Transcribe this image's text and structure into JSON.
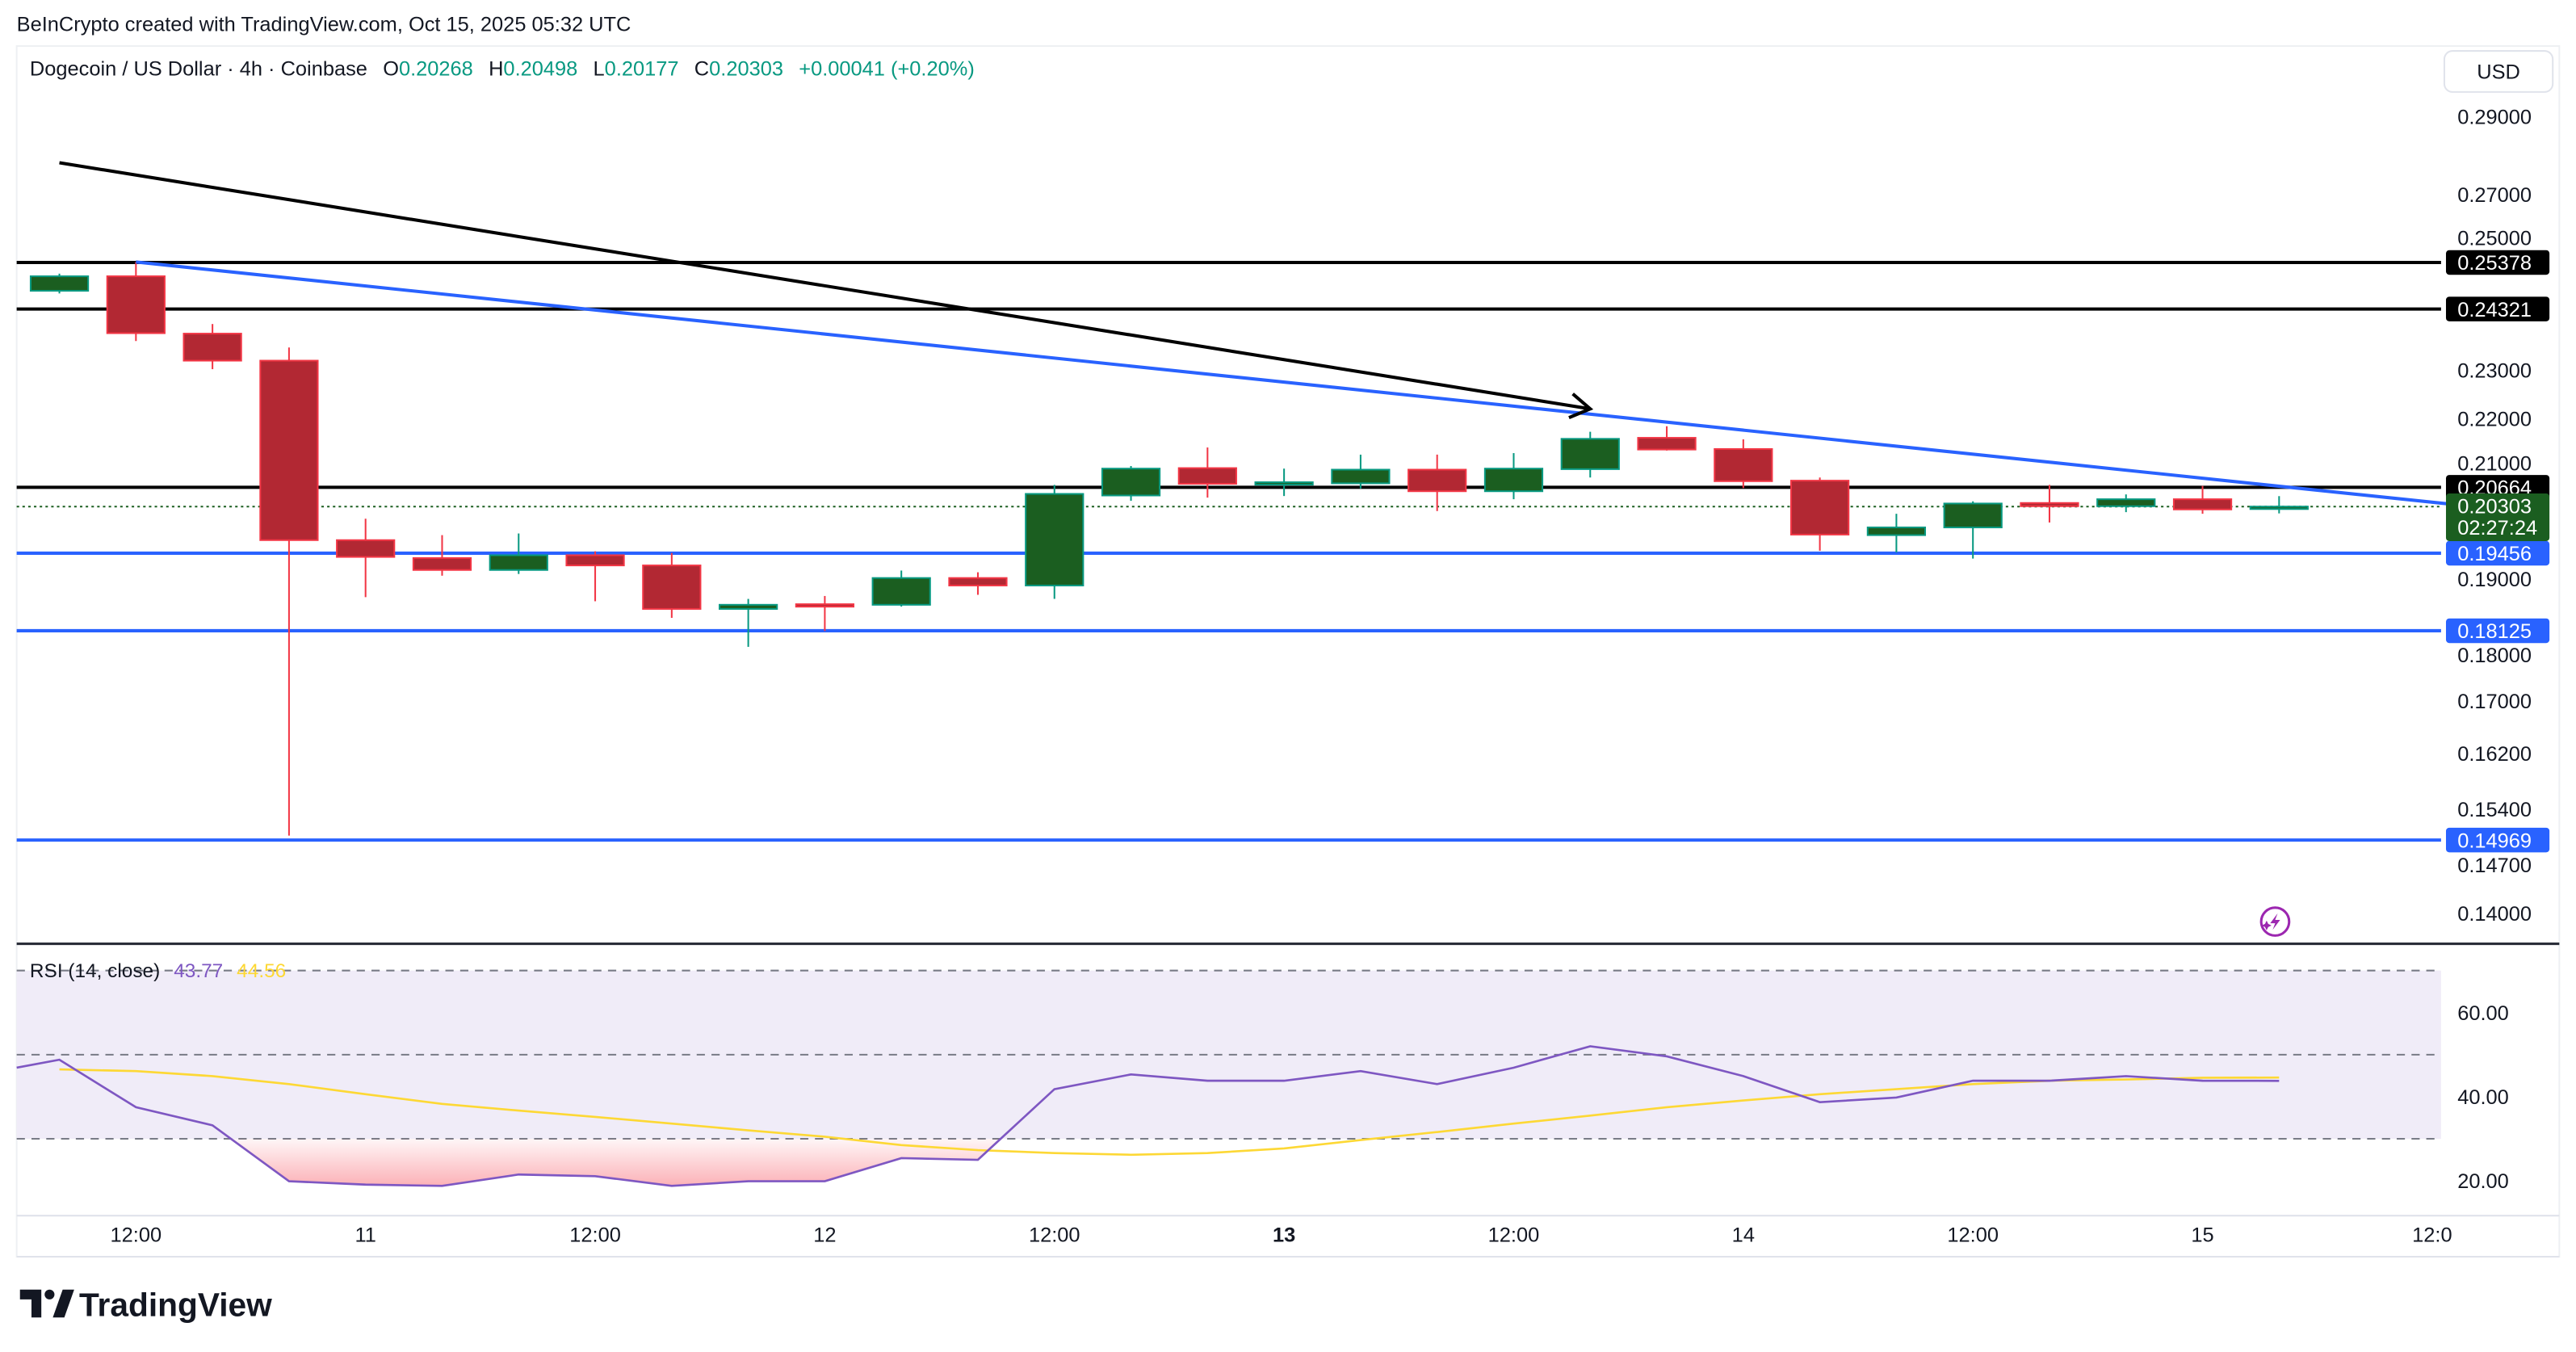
{
  "attribution": "BeInCrypto created with TradingView.com, Oct 15, 2025 05:32 UTC",
  "legend": {
    "symbol": "Dogecoin / US Dollar · 4h · Coinbase",
    "o_label": "O",
    "o": "0.20268",
    "h_label": "H",
    "h": "0.20498",
    "l_label": "L",
    "l": "0.20177",
    "c_label": "C",
    "c": "0.20303",
    "change": "+0.00041 (+0.20%)"
  },
  "currency_button": "USD",
  "logo_text": "TradingView",
  "icons": {
    "logo": "tradingview-logo-icon",
    "lightning": "lightning-icon"
  },
  "colors": {
    "up_body": "#1b5e20",
    "up_border": "#089981",
    "down_body": "#b22833",
    "down_border": "#f23645",
    "level_blue": "#2962ff",
    "level_black": "#000000",
    "rsi": "#7e57c2",
    "rsi_ma": "#fdd835"
  },
  "chart_data": [
    {
      "type": "candlestick",
      "title": "Dogecoin / US Dollar · 4h · Coinbase",
      "y_scale": "log",
      "ylim": [
        0.137,
        0.3
      ],
      "y_ticks": [
        "0.29000",
        "0.27000",
        "0.25000",
        "0.23000",
        "0.22000",
        "0.21000",
        "0.19000",
        "0.18000",
        "0.17000",
        "0.16200",
        "0.15400",
        "0.14700",
        "0.14000"
      ],
      "x_ticks": [
        "12:00",
        "11",
        "12:00",
        "12",
        "12:00",
        "13",
        "12:00",
        "14",
        "12:00",
        "15",
        "12:0"
      ],
      "x_ticks_bold": [
        "13"
      ],
      "x_start": "Oct 10 08:00",
      "interval": "4h",
      "ohlc": [
        [
          0.2473,
          0.2512,
          0.2467,
          0.2506
        ],
        [
          0.2506,
          0.2539,
          0.2362,
          0.2379
        ],
        [
          0.2378,
          0.2399,
          0.2302,
          0.232
        ],
        [
          0.232,
          0.2348,
          0.1503,
          0.1969
        ],
        [
          0.1969,
          0.2008,
          0.1869,
          0.1939
        ],
        [
          0.1937,
          0.1978,
          0.1906,
          0.1916
        ],
        [
          0.1916,
          0.1981,
          0.1909,
          0.1942
        ],
        [
          0.1942,
          0.1949,
          0.1862,
          0.1924
        ],
        [
          0.1924,
          0.1946,
          0.1834,
          0.1849
        ],
        [
          0.1849,
          0.1866,
          0.1786,
          0.1856
        ],
        [
          0.1857,
          0.1871,
          0.1812,
          0.1856
        ],
        [
          0.1856,
          0.1915,
          0.1853,
          0.1902
        ],
        [
          0.1902,
          0.1912,
          0.1873,
          0.1889
        ],
        [
          0.1889,
          0.2071,
          0.1866,
          0.2054
        ],
        [
          0.2051,
          0.2107,
          0.2041,
          0.2102
        ],
        [
          0.2103,
          0.2143,
          0.2047,
          0.2073
        ],
        [
          0.2074,
          0.2102,
          0.205,
          0.2076
        ],
        [
          0.2074,
          0.2129,
          0.2064,
          0.21
        ],
        [
          0.21,
          0.2129,
          0.2022,
          0.2059
        ],
        [
          0.2059,
          0.2132,
          0.2044,
          0.2102
        ],
        [
          0.2101,
          0.2174,
          0.2085,
          0.216
        ],
        [
          0.2162,
          0.2185,
          0.2137,
          0.2139
        ],
        [
          0.214,
          0.2159,
          0.2065,
          0.2078
        ],
        [
          0.2079,
          0.2085,
          0.195,
          0.1979
        ],
        [
          0.1978,
          0.2017,
          0.1947,
          0.1992
        ],
        [
          0.1992,
          0.204,
          0.1936,
          0.2036
        ],
        [
          0.2037,
          0.2071,
          0.2001,
          0.2031
        ],
        [
          0.2031,
          0.2053,
          0.202,
          0.2044
        ],
        [
          0.2044,
          0.2069,
          0.2017,
          0.2025
        ],
        [
          0.20268,
          0.20498,
          0.20177,
          0.20303
        ]
      ],
      "levels_black": [
        "0.25378",
        "0.24321",
        "0.20664"
      ],
      "levels_blue": [
        "0.19456",
        "0.18125",
        "0.14969"
      ],
      "last_price": "0.20303",
      "countdown": "02:27:24",
      "trendline_blue": {
        "from_bar": 1,
        "from_price": 0.2539,
        "to_bar": 31.9,
        "to_price": 0.2025
      },
      "arrow": {
        "from_bar": 0,
        "from_price": 0.278,
        "to_bar": 20,
        "to_price": 0.222
      }
    },
    {
      "type": "line",
      "title": "RSI (14, close)",
      "value_label": "43.77",
      "ma_label": "44.56",
      "ylim": [
        10,
        80
      ],
      "y_ticks": [
        "60.00",
        "40.00",
        "20.00"
      ],
      "bands": [
        70,
        50,
        30
      ],
      "series": [
        {
          "name": "RSI",
          "values": [
            48.8,
            37.5,
            33.2,
            19.9,
            19.1,
            18.8,
            21.5,
            21.1,
            18.8,
            19.9,
            19.9,
            25.4,
            25.0,
            41.8,
            45.3,
            43.8,
            43.8,
            46.1,
            43.0,
            46.9,
            52.0,
            49.6,
            44.9,
            38.7,
            39.8,
            43.8,
            43.8,
            44.9,
            43.8,
            43.77
          ]
        },
        {
          "name": "RSI-based MA",
          "values": [
            46.5,
            46.1,
            44.9,
            43.0,
            40.6,
            38.3,
            36.7,
            35.2,
            33.6,
            32.0,
            30.5,
            28.5,
            27.3,
            26.6,
            26.2,
            26.6,
            27.7,
            29.7,
            31.6,
            33.6,
            35.5,
            37.5,
            39.1,
            40.6,
            41.8,
            43.0,
            43.8,
            44.1,
            44.5,
            44.56
          ]
        }
      ],
      "arrow": {
        "from_bar": 0,
        "from_value": 52.7,
        "to_bar": 20,
        "to_value": 58.2
      }
    }
  ]
}
